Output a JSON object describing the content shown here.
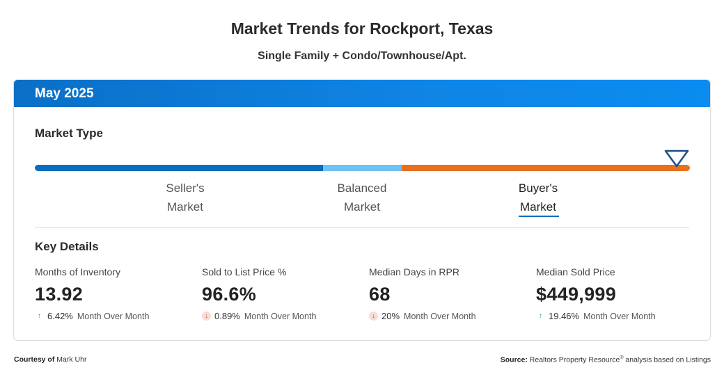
{
  "title": "Market Trends for Rockport, Texas",
  "subtitle": "Single Family + Condo/Townhouse/Apt.",
  "period": "May 2025",
  "market_type": {
    "heading": "Market Type",
    "segments": [
      {
        "line1": "Seller's",
        "line2": "Market",
        "color": "#0a6dbf"
      },
      {
        "line1": "Balanced",
        "line2": "Market",
        "color": "#6ec2f6"
      },
      {
        "line1": "Buyer's",
        "line2": "Market",
        "color": "#e8701f"
      }
    ],
    "selected": "Buyer's Market",
    "indicator_position": 0.98
  },
  "key_details": {
    "heading": "Key Details",
    "metrics": [
      {
        "label": "Months of Inventory",
        "value": "13.92",
        "direction": "up",
        "change": "6.42%",
        "period": "Month Over Month"
      },
      {
        "label": "Sold to List Price %",
        "value": "96.6%",
        "direction": "down",
        "change": "0.89%",
        "period": "Month Over Month"
      },
      {
        "label": "Median Days in RPR",
        "value": "68",
        "direction": "down",
        "change": "20%",
        "period": "Month Over Month"
      },
      {
        "label": "Median Sold Price",
        "value": "$449,999",
        "direction": "up",
        "change": "19.46%",
        "period": "Month Over Month"
      }
    ]
  },
  "footer": {
    "courtesy_label": "Courtesy of",
    "courtesy_name": "Mark Uhr",
    "source_label": "Source:",
    "source_text_1": "Realtors Property Resource",
    "source_reg": "®",
    "source_text_2": " analysis based on Listings"
  },
  "colors": {
    "header_blue": "#0f85e6",
    "up_green": "#1e9a57",
    "down_red": "#d9462a"
  }
}
